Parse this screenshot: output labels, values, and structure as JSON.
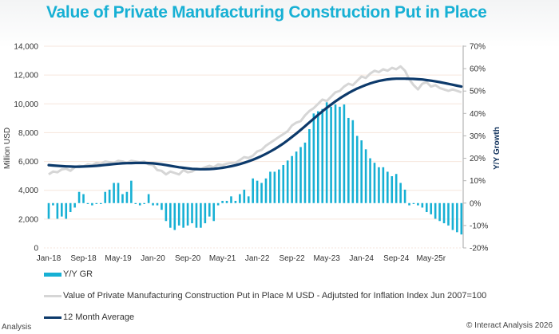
{
  "title": "Value of Private Manufacturing Construction Put in Place",
  "footer": {
    "left": "Analysis",
    "right": "© Interact Analysis 2026"
  },
  "colors": {
    "bars": "#17b0d4",
    "value_line": "#d6d6d6",
    "avg_line": "#0d3a6b",
    "title": "#17b0d4"
  },
  "chart_data": {
    "type": "bar+line",
    "title": "Value of Private Manufacturing Construction Put in Place",
    "xlabel": "",
    "ylabel_left": "Million USD",
    "ylabel_right": "Y/Y Growth",
    "ylim_left": [
      0,
      14000
    ],
    "ylim_right": [
      -20,
      70
    ],
    "yticks_left": [
      "0",
      "2,000",
      "4,000",
      "6,000",
      "8,000",
      "10,000",
      "12,000",
      "14,000"
    ],
    "yticks_right": [
      "-20%",
      "-10%",
      "0%",
      "10%",
      "20%",
      "30%",
      "40%",
      "50%",
      "60%",
      "70%"
    ],
    "xtick_labels": [
      "Jan-18",
      "Sep-18",
      "May-19",
      "Jan-20",
      "Sep-20",
      "May-21",
      "Jan-22",
      "Sep-22",
      "May-23",
      "Jan-24",
      "Sep-24",
      "May-25r"
    ],
    "xtick_step_months": 8,
    "months_count": 96,
    "start_month": "Jan-18",
    "grid": true,
    "legend_position": "bottom",
    "legend": [
      "Y/Y GR",
      "Value of Private Manufacturing Construction Put in Place M USD - Adjutsted for Inflation Index Jun 2007=100",
      "12 Month Average"
    ],
    "series": [
      {
        "name": "Y/Y GR",
        "type": "bar",
        "axis": "right",
        "unit": "%",
        "values": [
          -7,
          -1,
          -7,
          -6,
          -7,
          -4,
          -2,
          5,
          4,
          0,
          -1,
          0,
          0,
          5,
          6,
          9,
          9,
          4,
          5,
          10,
          0,
          -1,
          0,
          4,
          -1,
          -1,
          -3,
          -8,
          -11,
          -12,
          -10,
          -11,
          -10,
          -9,
          -11,
          -11,
          -9,
          -6,
          -8,
          -1,
          1,
          1,
          3,
          1,
          4,
          6,
          3,
          11,
          10,
          9,
          11,
          14,
          14,
          15,
          17,
          19,
          21,
          23,
          25,
          27,
          33,
          40,
          41,
          42,
          45,
          43,
          44,
          43,
          44,
          38,
          37,
          30,
          28,
          24,
          20,
          18,
          16,
          16,
          14,
          12,
          13,
          9,
          6,
          -1,
          0,
          -1,
          -2,
          -4,
          -5,
          -7,
          -8,
          -9,
          -10,
          -12,
          -13,
          -14
        ]
      },
      {
        "name": "Value of Private Manufacturing Construction Put in Place M USD - Adjutsted for Inflation Index Jun 2007=100",
        "type": "line",
        "axis": "left",
        "unit": "M USD",
        "values": [
          5100,
          5300,
          5250,
          5450,
          5500,
          5350,
          5600,
          5700,
          5650,
          5800,
          5750,
          5900,
          5850,
          6000,
          5950,
          5900,
          6050,
          6000,
          5900,
          6050,
          6000,
          5950,
          6000,
          5800,
          5750,
          5400,
          5350,
          5100,
          5300,
          5200,
          5100,
          5400,
          5250,
          5300,
          5500,
          5450,
          5600,
          5700,
          5600,
          5800,
          5750,
          5850,
          5900,
          5900,
          6100,
          6300,
          6250,
          6400,
          6700,
          6800,
          7100,
          7300,
          7500,
          7700,
          7900,
          8100,
          8500,
          8700,
          8800,
          9200,
          9500,
          9700,
          10000,
          10300,
          10200,
          10500,
          10800,
          10900,
          11200,
          11400,
          11300,
          11600,
          11900,
          11800,
          12100,
          12300,
          12200,
          12400,
          12300,
          12500,
          12400,
          12600,
          12300,
          11700,
          11300,
          11000,
          11400,
          11500,
          11200,
          11300,
          11100,
          11000,
          10900,
          11000,
          10900,
          10800
        ]
      },
      {
        "name": "12 Month Average",
        "type": "line",
        "axis": "left",
        "unit": "M USD",
        "values": [
          5750,
          5720,
          5700,
          5680,
          5660,
          5650,
          5640,
          5640,
          5650,
          5660,
          5680,
          5700,
          5730,
          5760,
          5790,
          5820,
          5850,
          5870,
          5880,
          5890,
          5900,
          5900,
          5900,
          5890,
          5870,
          5840,
          5800,
          5750,
          5700,
          5650,
          5600,
          5560,
          5520,
          5490,
          5470,
          5460,
          5460,
          5470,
          5490,
          5520,
          5560,
          5610,
          5670,
          5740,
          5820,
          5910,
          6010,
          6120,
          6250,
          6380,
          6530,
          6690,
          6860,
          7050,
          7250,
          7470,
          7700,
          7940,
          8190,
          8450,
          8710,
          8970,
          9230,
          9480,
          9720,
          9950,
          10170,
          10380,
          10570,
          10750,
          10910,
          11060,
          11190,
          11310,
          11420,
          11510,
          11590,
          11650,
          11700,
          11730,
          11750,
          11750,
          11750,
          11740,
          11730,
          11710,
          11690,
          11650,
          11610,
          11560,
          11510,
          11450,
          11390,
          11330,
          11260,
          11200
        ]
      }
    ]
  }
}
